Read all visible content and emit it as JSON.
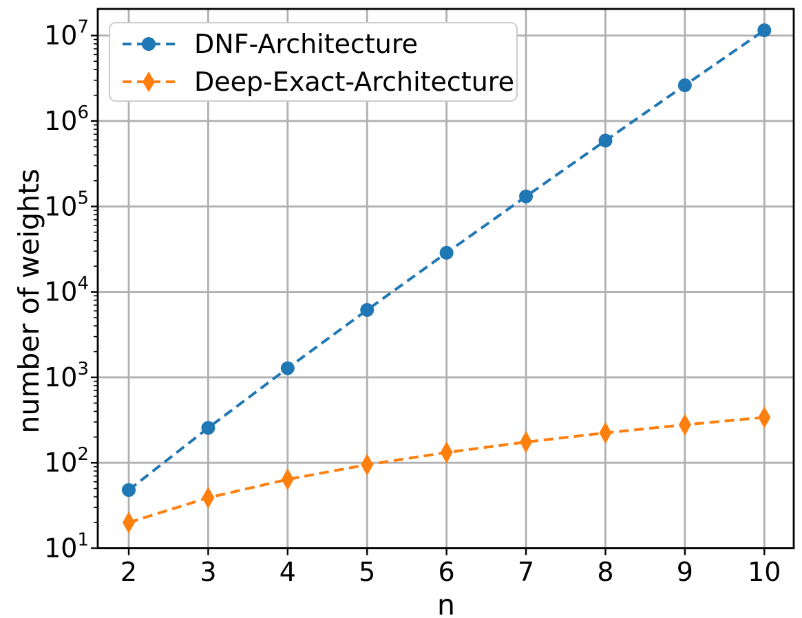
{
  "figure": {
    "background": "#ffffff",
    "grid_color": "#b0b0b0",
    "spine_color": "#000000",
    "tick_color": "#000000",
    "text_color": "#000000",
    "legend_border_color": "#cccccc"
  },
  "chart_data": {
    "type": "line",
    "title": "",
    "xlabel": "n",
    "ylabel": "number of weights",
    "x": [
      2,
      3,
      4,
      5,
      6,
      7,
      8,
      9,
      10
    ],
    "series": [
      {
        "name": "DNF-Architecture",
        "color": "#1f77b4",
        "marker": "circle",
        "linestyle": "dashed",
        "values": [
          48,
          256,
          1280,
          6144,
          28672,
          131072,
          589824,
          2621440,
          11534336
        ]
      },
      {
        "name": "Deep-Exact-Architecture",
        "color": "#ff7f0e",
        "marker": "thin-diamond",
        "linestyle": "dashed",
        "values": [
          20,
          39,
          64,
          95,
          132,
          175,
          224,
          279,
          340
        ]
      }
    ],
    "x_ticks": [
      2,
      3,
      4,
      5,
      6,
      7,
      8,
      9,
      10
    ],
    "y_scale": "log",
    "y_tick_exponents": [
      1,
      2,
      3,
      4,
      5,
      6,
      7
    ],
    "xlim": [
      1.61,
      10.37
    ],
    "ylim": [
      10,
      20500000
    ],
    "grid": true,
    "legend_position": "upper left"
  }
}
